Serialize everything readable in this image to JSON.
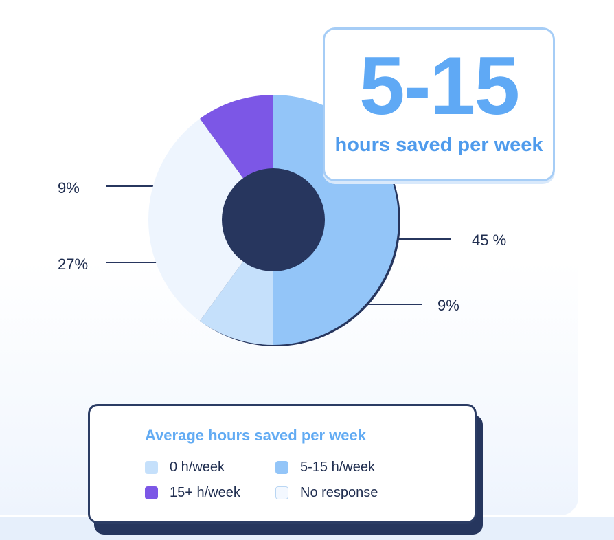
{
  "chart_data": {
    "type": "pie",
    "title": "Average hours saved per week",
    "hole_color": "#27365e",
    "slices": [
      {
        "name": "5-15 h/week",
        "value": 45,
        "label": "45 %",
        "color": "#93c5f8"
      },
      {
        "name": "15+ h/week",
        "value": 9,
        "label": "9%",
        "color": "#7c57e6"
      },
      {
        "name": "No response",
        "value": 27,
        "label": "27%",
        "color": "#eef5fe"
      },
      {
        "name": "0 h/week",
        "value": 9,
        "label": "9%",
        "color": "#c5e0fb"
      }
    ]
  },
  "highlight": {
    "number": "5-15",
    "caption": "hours saved per week"
  },
  "legend": {
    "title": "Average hours saved per week",
    "items": [
      {
        "label": "0 h/week",
        "color": "#c5e0fb",
        "border": "#c5e0fb"
      },
      {
        "label": "5-15 h/week",
        "color": "#93c5f8",
        "border": "#93c5f8"
      },
      {
        "label": "15+ h/week",
        "color": "#7c57e6",
        "border": "#7c57e6"
      },
      {
        "label": "No response",
        "color": "#f3f8ff",
        "border": "#b9d6f3"
      }
    ]
  }
}
